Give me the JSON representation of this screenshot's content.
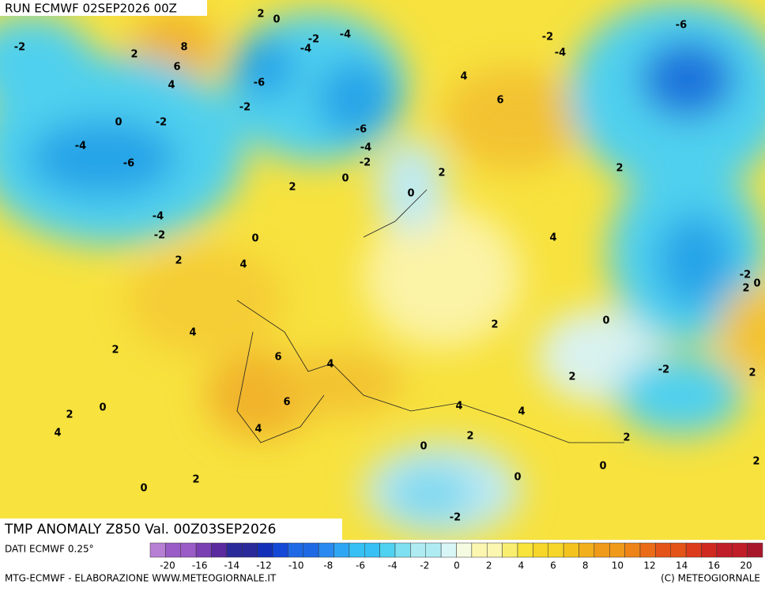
{
  "header": {
    "run": "RUN ECMWF 02SEP2026 00Z",
    "title": "TMP ANOMALY Z850 Val. 00Z03SEP2026"
  },
  "contour_labels": [
    "-2",
    "2",
    "2",
    "0",
    "8",
    "6",
    "4",
    "-2",
    "-4",
    "-4",
    "-6",
    "-2",
    "0",
    "-2",
    "-4",
    "-6",
    "2",
    "0",
    "-6",
    "-4",
    "-2",
    "4",
    "6",
    "-2",
    "-4",
    "-6",
    "2",
    "0",
    "2",
    "4",
    "-4",
    "-2",
    "0",
    "2",
    "4",
    "-2",
    "0",
    "2",
    "4",
    "2",
    "2",
    "0",
    "6",
    "4",
    "-2",
    "2",
    "2",
    "6",
    "2",
    "0",
    "4",
    "4",
    "4",
    "4",
    "2",
    "2",
    "0",
    "2",
    "2",
    "0",
    "0",
    "0",
    "-2"
  ],
  "legend": {
    "source": "DATI ECMWF 0.25°",
    "scale_labels": [
      "-20",
      "-16",
      "-14",
      "-12",
      "-10",
      "-8",
      "-6",
      "-4",
      "-2",
      "0",
      "2",
      "4",
      "6",
      "8",
      "10",
      "12",
      "14",
      "16",
      "20"
    ]
  },
  "footer": {
    "left": "MTG-ECMWF - ELABORAZIONE WWW.METEOGIORNALE.IT",
    "right": "(C) METEOGIORNALE"
  }
}
